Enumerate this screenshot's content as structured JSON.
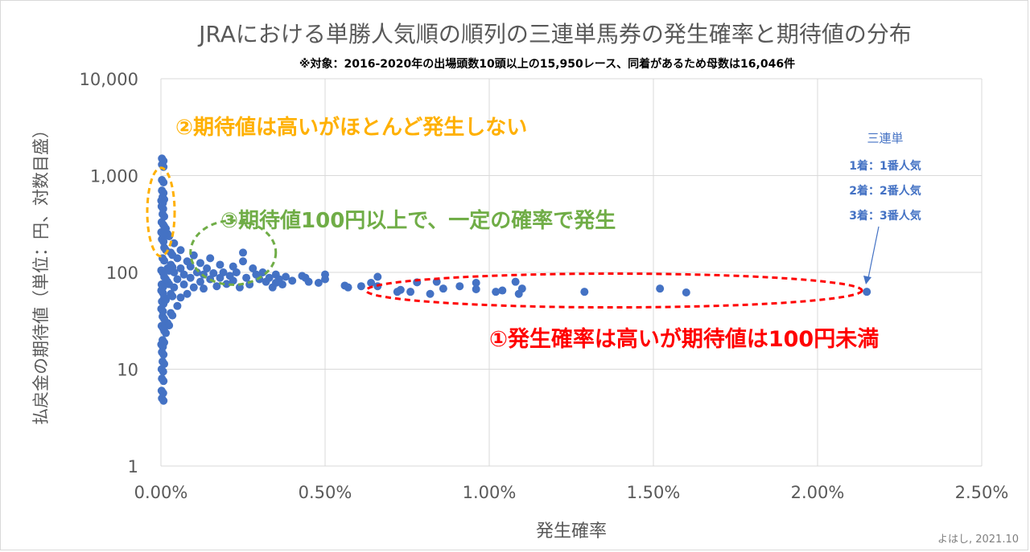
{
  "chart_data": {
    "type": "scatter",
    "title": "JRAにおける単勝人気順の順列の三連単馬券の発生確率と期待値の分布",
    "subtitle": "※対象：2016-2020年の出場頭数10頭以上の15,950レース、同着があるため母数は16,046件",
    "xlabel": "発生確率",
    "ylabel": "払戻金の期待値（単位：円、対数目盛）",
    "x_unit": "%",
    "y_scale": "log",
    "xlim": [
      0,
      2.5
    ],
    "ylim": [
      1,
      10000
    ],
    "x_ticks": [
      0,
      0.5,
      1.0,
      1.5,
      2.0,
      2.5
    ],
    "x_tick_labels": [
      "0.00%",
      "0.50%",
      "1.00%",
      "1.50%",
      "2.00%",
      "2.50%"
    ],
    "y_ticks": [
      1,
      10,
      100,
      1000,
      10000
    ],
    "y_tick_labels": [
      "1",
      "10",
      "100",
      "1,000",
      "10,000"
    ],
    "grid": "vertical and horizontal",
    "series_color": "#4472c4",
    "series": [
      {
        "points": [
          [
            2.15,
            63
          ],
          [
            1.6,
            62
          ],
          [
            1.52,
            68
          ],
          [
            1.29,
            63
          ],
          [
            1.1,
            68
          ],
          [
            1.09,
            60
          ],
          [
            1.08,
            80
          ],
          [
            1.04,
            65
          ],
          [
            1.02,
            63
          ],
          [
            0.96,
            67
          ],
          [
            0.96,
            78
          ],
          [
            0.91,
            72
          ],
          [
            0.86,
            68
          ],
          [
            0.84,
            80
          ],
          [
            0.82,
            60
          ],
          [
            0.78,
            79
          ],
          [
            0.76,
            63
          ],
          [
            0.73,
            66
          ],
          [
            0.72,
            63
          ],
          [
            0.66,
            72
          ],
          [
            0.66,
            90
          ],
          [
            0.64,
            78
          ],
          [
            0.61,
            72
          ],
          [
            0.57,
            70
          ],
          [
            0.56,
            73
          ],
          [
            0.5,
            85
          ],
          [
            0.5,
            95
          ],
          [
            0.48,
            78
          ],
          [
            0.45,
            80
          ],
          [
            0.44,
            88
          ],
          [
            0.43,
            92
          ],
          [
            0.4,
            82
          ],
          [
            0.38,
            90
          ],
          [
            0.37,
            75
          ],
          [
            0.36,
            85
          ],
          [
            0.35,
            78
          ],
          [
            0.35,
            95
          ],
          [
            0.34,
            70
          ],
          [
            0.33,
            88
          ],
          [
            0.32,
            80
          ],
          [
            0.31,
            100
          ],
          [
            0.3,
            85
          ],
          [
            0.29,
            95
          ],
          [
            0.28,
            110
          ],
          [
            0.27,
            75
          ],
          [
            0.26,
            88
          ],
          [
            0.25,
            130
          ],
          [
            0.25,
            160
          ],
          [
            0.24,
            70
          ],
          [
            0.23,
            100
          ],
          [
            0.22,
            82
          ],
          [
            0.22,
            115
          ],
          [
            0.21,
            92
          ],
          [
            0.2,
            76
          ],
          [
            0.19,
            100
          ],
          [
            0.18,
            88
          ],
          [
            0.18,
            120
          ],
          [
            0.17,
            72
          ],
          [
            0.16,
            98
          ],
          [
            0.15,
            85
          ],
          [
            0.15,
            140
          ],
          [
            0.14,
            110
          ],
          [
            0.13,
            68
          ],
          [
            0.13,
            95
          ],
          [
            0.12,
            125
          ],
          [
            0.12,
            80
          ],
          [
            0.11,
            100
          ],
          [
            0.1,
            70
          ],
          [
            0.1,
            150
          ],
          [
            0.09,
            88
          ],
          [
            0.09,
            115
          ],
          [
            0.08,
            60
          ],
          [
            0.08,
            130
          ],
          [
            0.07,
            95
          ],
          [
            0.07,
            75
          ],
          [
            0.06,
            110
          ],
          [
            0.06,
            55
          ],
          [
            0.06,
            170
          ],
          [
            0.05,
            85
          ],
          [
            0.05,
            140
          ],
          [
            0.05,
            45
          ],
          [
            0.04,
            100
          ],
          [
            0.04,
            70
          ],
          [
            0.04,
            200
          ],
          [
            0.03,
            60
          ],
          [
            0.03,
            120
          ],
          [
            0.03,
            38
          ],
          [
            0.03,
            160
          ],
          [
            0.02,
            80
          ],
          [
            0.02,
            30
          ],
          [
            0.02,
            250
          ],
          [
            0.02,
            110
          ],
          [
            0.01,
            55
          ],
          [
            0.01,
            25
          ],
          [
            0.01,
            300
          ],
          [
            0.01,
            180
          ],
          [
            0.01,
            90
          ],
          [
            0.005,
            12
          ],
          [
            0.005,
            20
          ],
          [
            0.005,
            400
          ],
          [
            0.005,
            600
          ],
          [
            0.005,
            35
          ],
          [
            0.005,
            140
          ],
          [
            0.003,
            8
          ],
          [
            0.003,
            5
          ],
          [
            0.003,
            1500
          ],
          [
            0.003,
            1300
          ],
          [
            0.003,
            900
          ],
          [
            0.003,
            700
          ],
          [
            0.003,
            15
          ],
          [
            0.003,
            50
          ],
          [
            0.003,
            220
          ],
          [
            0.002,
            6
          ],
          [
            0.002,
            10
          ],
          [
            0.002,
            330
          ],
          [
            0.002,
            75
          ],
          [
            0.002,
            480
          ],
          [
            0.002,
            28
          ],
          [
            0.001,
            18
          ],
          [
            0.001,
            42
          ],
          [
            0.001,
            65
          ],
          [
            0.001,
            105
          ],
          [
            0.001,
            260
          ],
          [
            0.001,
            550
          ]
        ]
      }
    ],
    "annotations": [
      {
        "text": "②期待値は高いがほとんど発生しない",
        "color": "#ffb000"
      },
      {
        "text": "③期待値100円以上で、一定の確率で発生",
        "color": "#70ad47"
      },
      {
        "text": "①発生確率は高いが期待値は100円未満",
        "color": "#ff0000"
      }
    ],
    "callout": {
      "title": "三連単",
      "lines": [
        "1着：1番人気",
        "2着：2番人気",
        "3着：3番人気"
      ],
      "color": "#4472c4"
    },
    "credit": "よはし, 2021.10"
  }
}
